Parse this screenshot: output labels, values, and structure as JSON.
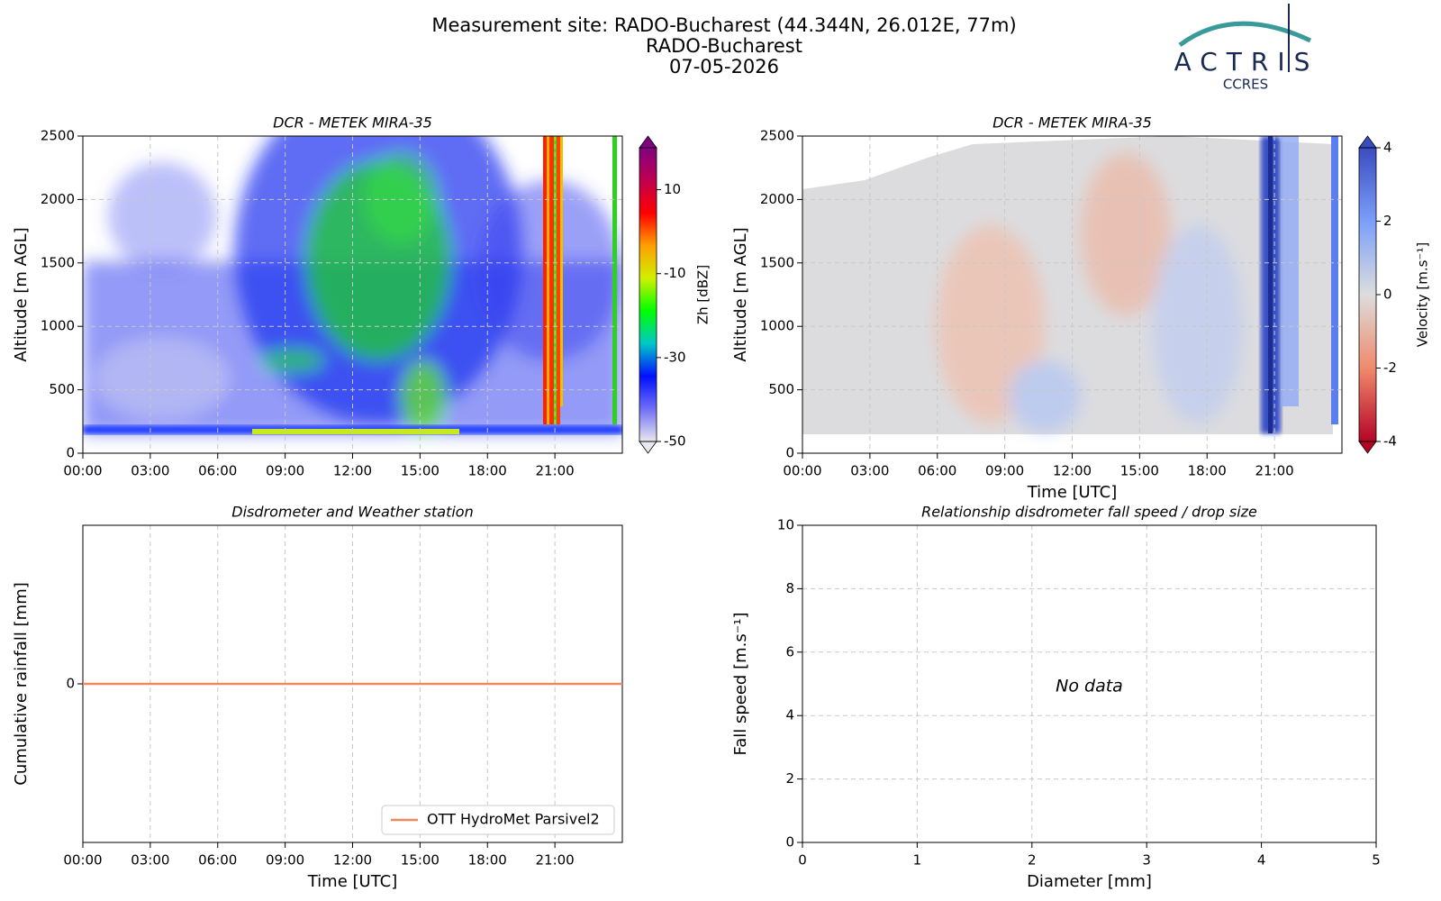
{
  "header": {
    "title_lines": [
      "Measurement site: RADO-Bucharest (44.344N, 26.012E, 77m)",
      "RADO-Bucharest",
      "07-05-2026"
    ],
    "logo": "ACTRIS",
    "logo_sub": "CCRES"
  },
  "chart_data": [
    {
      "type": "heatmap",
      "title": "DCR - METEK MIRA-35",
      "ylabel": "Altitude [m AGL]",
      "xlim": [
        0,
        24
      ],
      "xticks": [
        {
          "value": 0,
          "label": "00:00"
        },
        {
          "value": 3,
          "label": "03:00"
        },
        {
          "value": 6,
          "label": "06:00"
        },
        {
          "value": 9,
          "label": "09:00"
        },
        {
          "value": 12,
          "label": "12:00"
        },
        {
          "value": 15,
          "label": "15:00"
        },
        {
          "value": 18,
          "label": "18:00"
        },
        {
          "value": 21,
          "label": "21:00"
        }
      ],
      "ylim": [
        0,
        2500
      ],
      "yticks": [
        0,
        500,
        1000,
        1500,
        2000,
        2500
      ],
      "grid": true,
      "colorbar": {
        "label": "Zh [dBZ]",
        "lim": [
          -50,
          20
        ],
        "ticks": [
          -50,
          -30,
          -10,
          10
        ],
        "colormap": [
          "#e8e8ee",
          "#6f6ff5",
          "#0010ff",
          "#00c8c8",
          "#00ff00",
          "#d0f000",
          "#ffa000",
          "#ff0000",
          "#c00050",
          "#800080"
        ]
      }
    },
    {
      "type": "heatmap",
      "title": "DCR - METEK MIRA-35",
      "ylabel": "Altitude [m AGL]",
      "xlabel": "Time [UTC]",
      "xlim": [
        0,
        24
      ],
      "xticks": [
        {
          "value": 0,
          "label": "00:00"
        },
        {
          "value": 3,
          "label": "03:00"
        },
        {
          "value": 6,
          "label": "06:00"
        },
        {
          "value": 9,
          "label": "09:00"
        },
        {
          "value": 12,
          "label": "12:00"
        },
        {
          "value": 15,
          "label": "15:00"
        },
        {
          "value": 18,
          "label": "18:00"
        },
        {
          "value": 21,
          "label": "21:00"
        }
      ],
      "ylim": [
        0,
        2500
      ],
      "yticks": [
        0,
        500,
        1000,
        1500,
        2000,
        2500
      ],
      "grid": true,
      "colorbar": {
        "label": "Velocity [m.s⁻¹]",
        "lim": [
          -4,
          4
        ],
        "ticks": [
          -4,
          -2,
          0,
          2,
          4
        ],
        "colormap": [
          "#b40426",
          "#f08a6c",
          "#dddddd",
          "#7b9ff9",
          "#3b4cc0"
        ]
      }
    },
    {
      "type": "line",
      "title": "Disdrometer and Weather station",
      "ylabel": "Cumulative rainfall [mm]",
      "xlabel": "Time [UTC]",
      "xlim": [
        0,
        24
      ],
      "xticks": [
        {
          "value": 0,
          "label": "00:00"
        },
        {
          "value": 3,
          "label": "03:00"
        },
        {
          "value": 6,
          "label": "06:00"
        },
        {
          "value": 9,
          "label": "09:00"
        },
        {
          "value": 12,
          "label": "12:00"
        },
        {
          "value": 15,
          "label": "15:00"
        },
        {
          "value": 18,
          "label": "18:00"
        },
        {
          "value": 21,
          "label": "21:00"
        }
      ],
      "ylim": [
        -1,
        1
      ],
      "yticks": [
        0
      ],
      "grid": true,
      "legend": "lower right",
      "series": [
        {
          "name": "OTT HydroMet Parsivel2",
          "color": "#f08a5d",
          "x": [
            0,
            24
          ],
          "values": [
            0,
            0
          ]
        }
      ]
    },
    {
      "type": "scatter",
      "title": "Relationship disdrometer fall speed / drop size",
      "xlabel": "Diameter [mm]",
      "ylabel": "Fall speed [m.s⁻¹]",
      "xlim": [
        0,
        5
      ],
      "xticks": [
        0,
        1,
        2,
        3,
        4,
        5
      ],
      "ylim": [
        0,
        10
      ],
      "yticks": [
        0,
        2,
        4,
        6,
        8,
        10
      ],
      "grid": true,
      "annotation": "No data"
    }
  ]
}
